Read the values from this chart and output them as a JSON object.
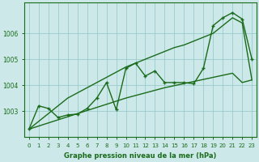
{
  "xlabel": "Graphe pression niveau de la mer (hPa)",
  "x_values": [
    0,
    1,
    2,
    3,
    4,
    5,
    6,
    7,
    8,
    9,
    10,
    11,
    12,
    13,
    14,
    15,
    16,
    17,
    18,
    19,
    20,
    21,
    22,
    23
  ],
  "main_line": [
    1002.3,
    1003.2,
    1003.1,
    1002.75,
    1002.85,
    1002.88,
    1003.1,
    1003.5,
    1004.1,
    1003.05,
    1004.65,
    1004.85,
    1004.35,
    1004.55,
    1004.1,
    1004.1,
    1004.1,
    1004.05,
    1004.65,
    1006.3,
    1006.6,
    1006.8,
    1006.55,
    1005.0
  ],
  "trend_low": [
    1002.3,
    1002.42,
    1002.54,
    1002.66,
    1002.78,
    1002.9,
    1003.02,
    1003.14,
    1003.26,
    1003.38,
    1003.5,
    1003.6,
    1003.7,
    1003.8,
    1003.9,
    1003.98,
    1004.06,
    1004.14,
    1004.22,
    1004.3,
    1004.38,
    1004.46,
    1004.1,
    1004.2
  ],
  "trend_high": [
    1002.3,
    1002.6,
    1002.9,
    1003.2,
    1003.5,
    1003.7,
    1003.9,
    1004.1,
    1004.3,
    1004.5,
    1004.7,
    1004.85,
    1005.0,
    1005.15,
    1005.3,
    1005.45,
    1005.55,
    1005.7,
    1005.85,
    1006.0,
    1006.3,
    1006.6,
    1006.4,
    1004.2
  ],
  "line_color": "#1a6b1a",
  "bg_color": "#cce8e8",
  "grid_color": "#99cccc",
  "ylim_min": 1002.0,
  "ylim_max": 1007.2,
  "yticks": [
    1003,
    1004,
    1005,
    1006
  ],
  "marker": "+",
  "marker_size": 3.5,
  "line_width": 1.0
}
